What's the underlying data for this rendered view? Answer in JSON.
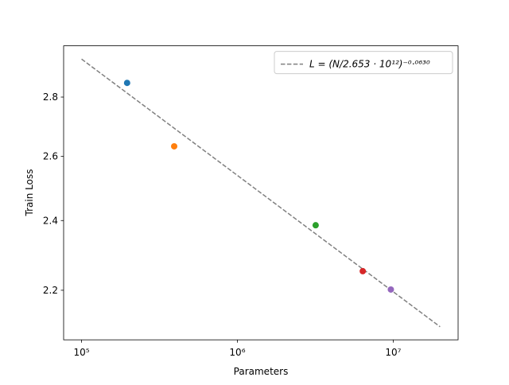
{
  "chart_data": {
    "type": "scatter",
    "xlabel": "Parameters",
    "ylabel": "Train Loss",
    "xscale": "log",
    "yscale": "log",
    "xlim": [
      76700,
      26100000
    ],
    "ylim": [
      2.068,
      2.985
    ],
    "xticks": [
      {
        "value": 100000,
        "label": "10⁵"
      },
      {
        "value": 1000000,
        "label": "10⁶"
      },
      {
        "value": 10000000,
        "label": "10⁷"
      }
    ],
    "yticks": [
      2.2,
      2.4,
      2.6,
      2.8
    ],
    "legend": "upper right",
    "series": [
      {
        "name": "L = (N/2.653 · 10¹²)⁻⁰·⁰⁶³⁰",
        "type": "line",
        "linestyle": "dashed",
        "color": "#808080",
        "x": [
          100000,
          20000000
        ],
        "values": [
          2.936,
          2.102
        ]
      },
      {
        "type": "scatter",
        "color": "#1f77b4",
        "x": [
          196000
        ],
        "values": [
          2.85
        ]
      },
      {
        "type": "scatter",
        "color": "#ff7f0e",
        "x": [
          393000
        ],
        "values": [
          2.633
        ]
      },
      {
        "type": "scatter",
        "color": "#2ca02c",
        "x": [
          3180000
        ],
        "values": [
          2.386
        ]
      },
      {
        "type": "scatter",
        "color": "#d62728",
        "x": [
          6380000
        ],
        "values": [
          2.253
        ]
      },
      {
        "type": "scatter",
        "color": "#9467bd",
        "x": [
          9660000
        ],
        "values": [
          2.202
        ]
      }
    ]
  }
}
